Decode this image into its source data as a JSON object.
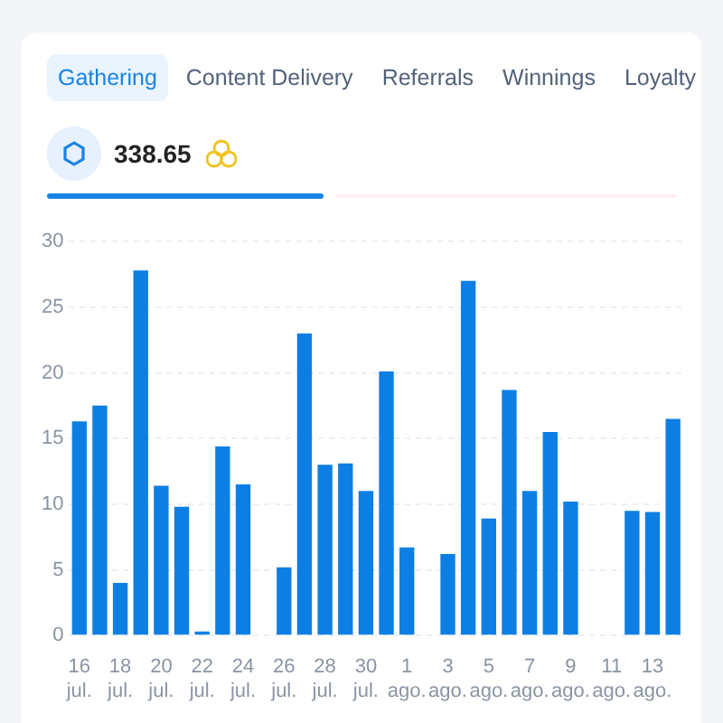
{
  "chart_data": {
    "type": "bar",
    "annotations": [
      "Gathering",
      "Content Delivery",
      "Referrals",
      "Winnings",
      "Loyalty",
      "338.65"
    ],
    "categories": [
      "16 jul.",
      null,
      "18 jul.",
      null,
      "20 jul.",
      null,
      "22 jul.",
      null,
      "24 jul.",
      null,
      "26 jul.",
      null,
      "28 jul.",
      null,
      "30 jul.",
      null,
      "1 ago.",
      null,
      "3 ago.",
      null,
      "5 ago.",
      null,
      "7 ago.",
      null,
      "9 ago.",
      null,
      "11 ago.",
      null,
      "13 ago.",
      null
    ],
    "values": [
      16.3,
      17.5,
      4,
      27.8,
      11.4,
      9.8,
      0.3,
      14.4,
      11.5,
      0,
      5.2,
      23,
      13,
      13.1,
      11,
      20.1,
      6.7,
      0,
      6.2,
      27,
      8.9,
      18.7,
      11,
      15.5,
      10.2,
      0,
      0,
      9.5,
      9.4,
      16.5
    ],
    "color": "#0d7fe4",
    "ylim": [
      0,
      30
    ],
    "yticks": [
      0,
      5,
      10,
      15,
      20,
      25,
      30
    ],
    "grid": "y",
    "legend": false
  }
}
